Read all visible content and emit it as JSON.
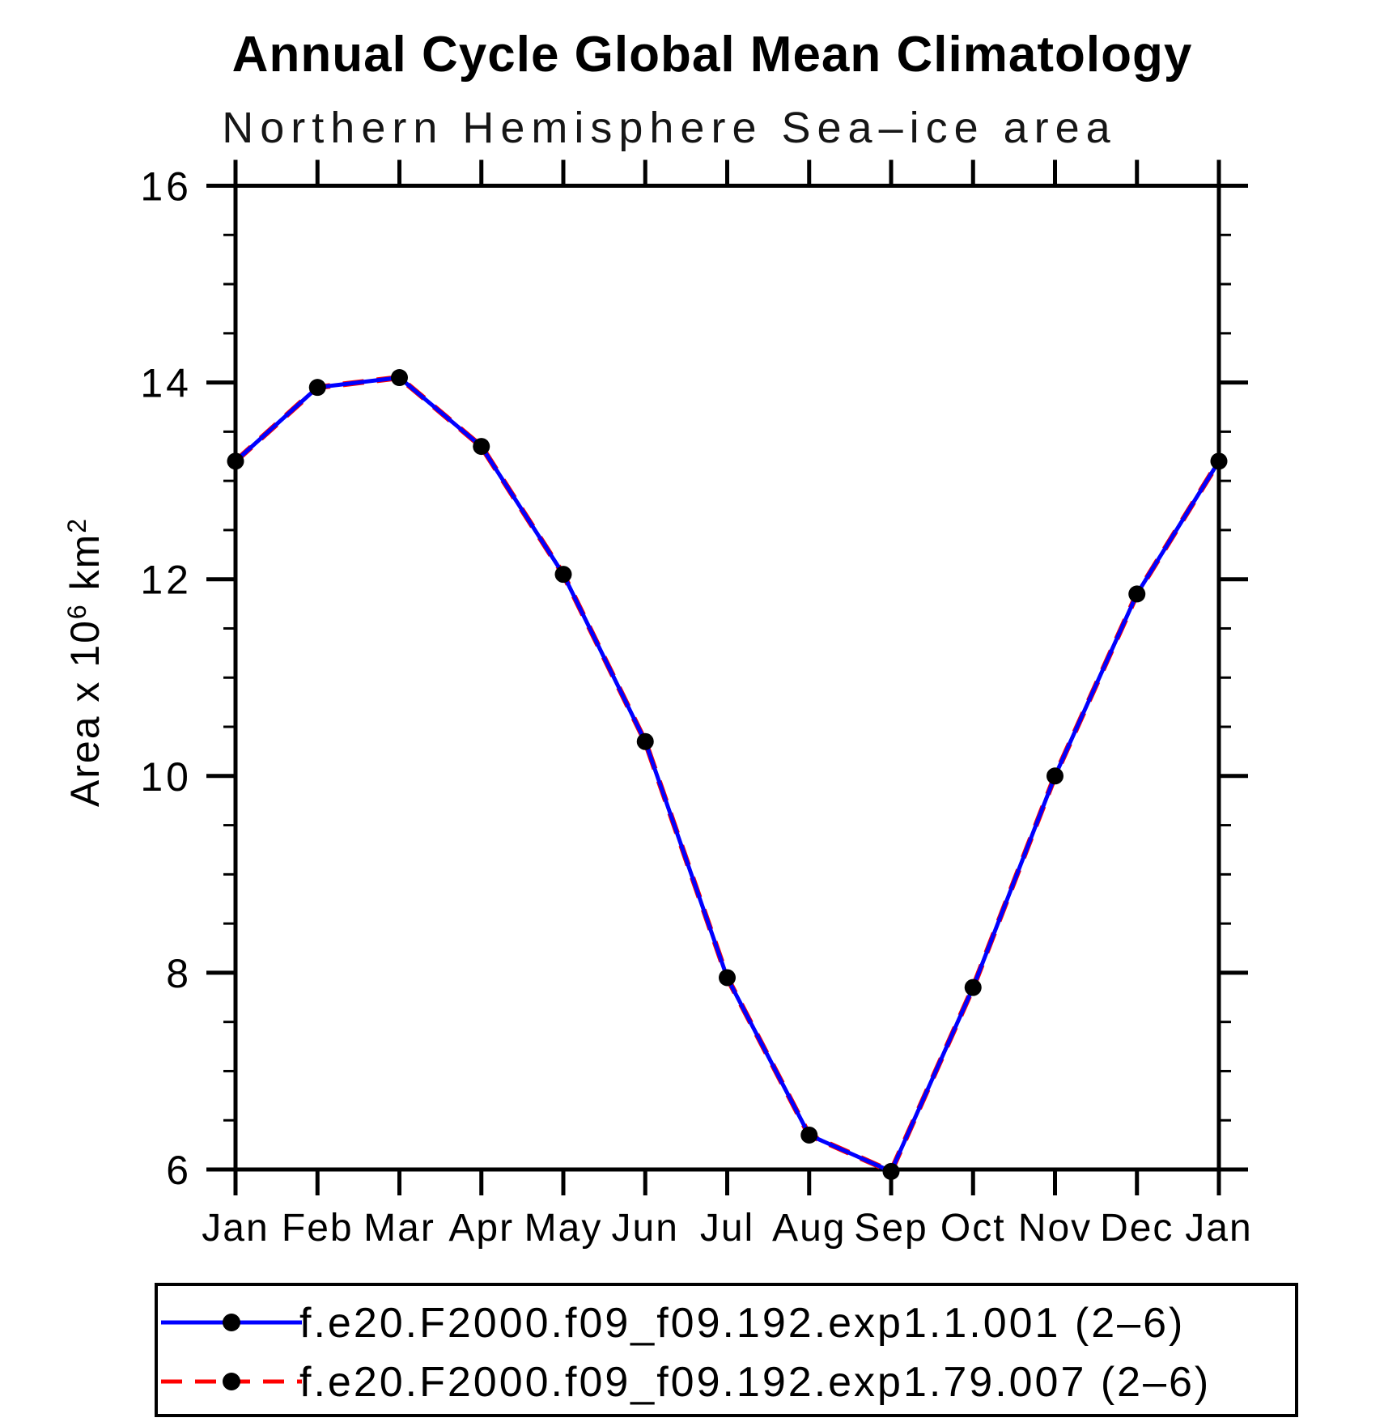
{
  "title": "Annual Cycle Global Mean Climatology",
  "subtitle": "Northern Hemisphere Sea–ice area",
  "chart_data": {
    "type": "line",
    "categories": [
      "Jan",
      "Feb",
      "Mar",
      "Apr",
      "May",
      "Jun",
      "Jul",
      "Aug",
      "Sep",
      "Oct",
      "Nov",
      "Dec",
      "Jan"
    ],
    "series": [
      {
        "name": "f.e20.F2000.f09_f09.192.exp1.1.001 (2–6)",
        "color": "#0000ff",
        "line_style": "solid",
        "marker": "filled-circle",
        "marker_color": "#000000",
        "values": [
          13.2,
          13.95,
          14.05,
          13.35,
          12.05,
          10.35,
          7.95,
          6.35,
          5.98,
          7.85,
          10.0,
          11.85,
          13.2
        ]
      },
      {
        "name": "f.e20.F2000.f09_f09.192.exp1.79.007 (2–6)",
        "color": "#ff0000",
        "line_style": "dashed",
        "marker": "filled-circle",
        "marker_color": "#000000",
        "values": [
          13.2,
          13.95,
          14.05,
          13.35,
          12.05,
          10.35,
          7.95,
          6.35,
          5.98,
          7.85,
          10.0,
          11.85,
          13.2
        ],
        "note": "overlaps series 1 almost exactly; hidden beneath blue line"
      }
    ],
    "xlabel": "",
    "ylabel": "Area x 10⁶ km²",
    "ylabel_parts": [
      {
        "t": "Area x 10",
        "sup": false
      },
      {
        "t": "6",
        "sup": true
      },
      {
        "t": " km",
        "sup": false
      },
      {
        "t": "2",
        "sup": true
      }
    ],
    "ylim": [
      6,
      16
    ],
    "y_major_ticks": [
      6,
      8,
      10,
      12,
      14,
      16
    ],
    "y_minor_step": 0.5,
    "grid": false,
    "legend_position": "bottom"
  },
  "legend": {
    "entries": [
      {
        "label": "f.e20.F2000.f09_f09.192.exp1.1.001 (2–6)",
        "line_color": "#0000ff",
        "line_style": "solid",
        "marker": "filled-circle",
        "marker_color": "#000000"
      },
      {
        "label": "f.e20.F2000.f09_f09.192.exp1.79.007 (2–6)",
        "line_color": "#ff0000",
        "line_style": "dashed",
        "marker": "filled-circle",
        "marker_color": "#000000"
      }
    ]
  },
  "colors": {
    "background": "#ffffff",
    "axis": "#000000",
    "series_1": "#0000ff",
    "series_2": "#ff0000",
    "marker": "#000000",
    "title_text": "#000000"
  }
}
